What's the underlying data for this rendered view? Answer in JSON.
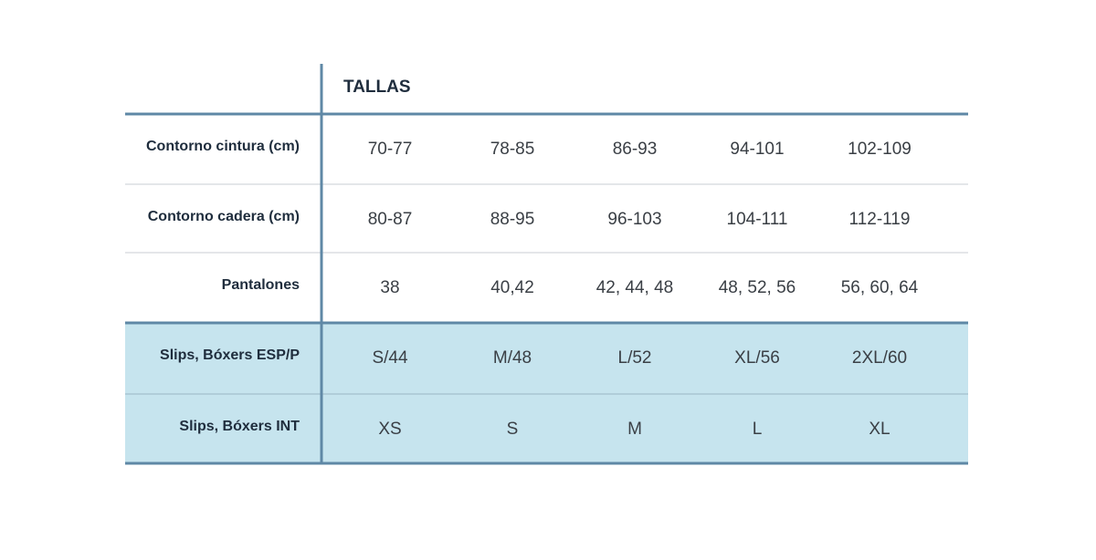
{
  "header": {
    "title": "TALLAS"
  },
  "table": {
    "rows": [
      {
        "label": "Contorno cintura (cm)",
        "values": [
          "70-77",
          "78-85",
          "86-93",
          "94-101",
          "102-109"
        ]
      },
      {
        "label": "Contorno cadera (cm)",
        "values": [
          "80-87",
          "88-95",
          "96-103",
          "104-111",
          "112-119"
        ]
      },
      {
        "label": "Pantalones",
        "values": [
          "38",
          "40,42",
          "42, 44, 48",
          "48, 52, 56",
          "56, 60, 64"
        ]
      },
      {
        "label": "Slips, Bóxers ESP/P",
        "values": [
          "S/44",
          "M/48",
          "L/52",
          "XL/56",
          "2XL/60"
        ]
      },
      {
        "label": "Slips, Bóxers INT",
        "values": [
          "XS",
          "S",
          "M",
          "L",
          "XL"
        ]
      }
    ]
  }
}
